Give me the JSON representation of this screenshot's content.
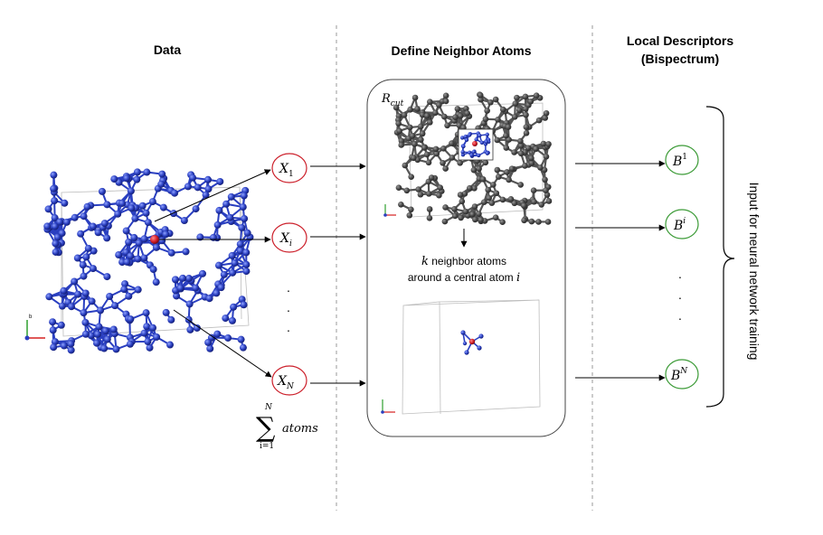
{
  "headers": {
    "data": "Data",
    "neighbor": "Define Neighbor Atoms",
    "descriptors_line1": "Local Descriptors",
    "descriptors_line2": "(Bispectrum)"
  },
  "inputs": {
    "x1": {
      "base": "X",
      "sub": "1"
    },
    "xi": {
      "base": "X",
      "sub": "i"
    },
    "xn": {
      "base": "X",
      "sub": "N"
    },
    "dots": "."
  },
  "sum": {
    "symbol": "∑",
    "upper": "N",
    "lower": "i=1",
    "label": "atoms"
  },
  "neighbor_panel": {
    "rcut_base": "R",
    "rcut_sub": "cut",
    "caption_k": "k",
    "caption_line1_rest": " neighbor atoms",
    "caption_line2_pre": "around a central atom ",
    "caption_line2_var": "i"
  },
  "outputs": {
    "b1": {
      "base": "B",
      "sup": "1"
    },
    "bi": {
      "base": "B",
      "sup": "i"
    },
    "bn": {
      "base": "B",
      "sup": "N"
    },
    "dots": "."
  },
  "side_label": "Input for neural network training",
  "axes": {
    "b": "b"
  },
  "colors": {
    "atom_blue": "#2a3fc0",
    "atom_dark": "#5a5a5a",
    "central_atom": "#d6212a",
    "input_circle": "#cc1f2a",
    "output_circle": "#3a9a35",
    "divider": "#999999"
  }
}
